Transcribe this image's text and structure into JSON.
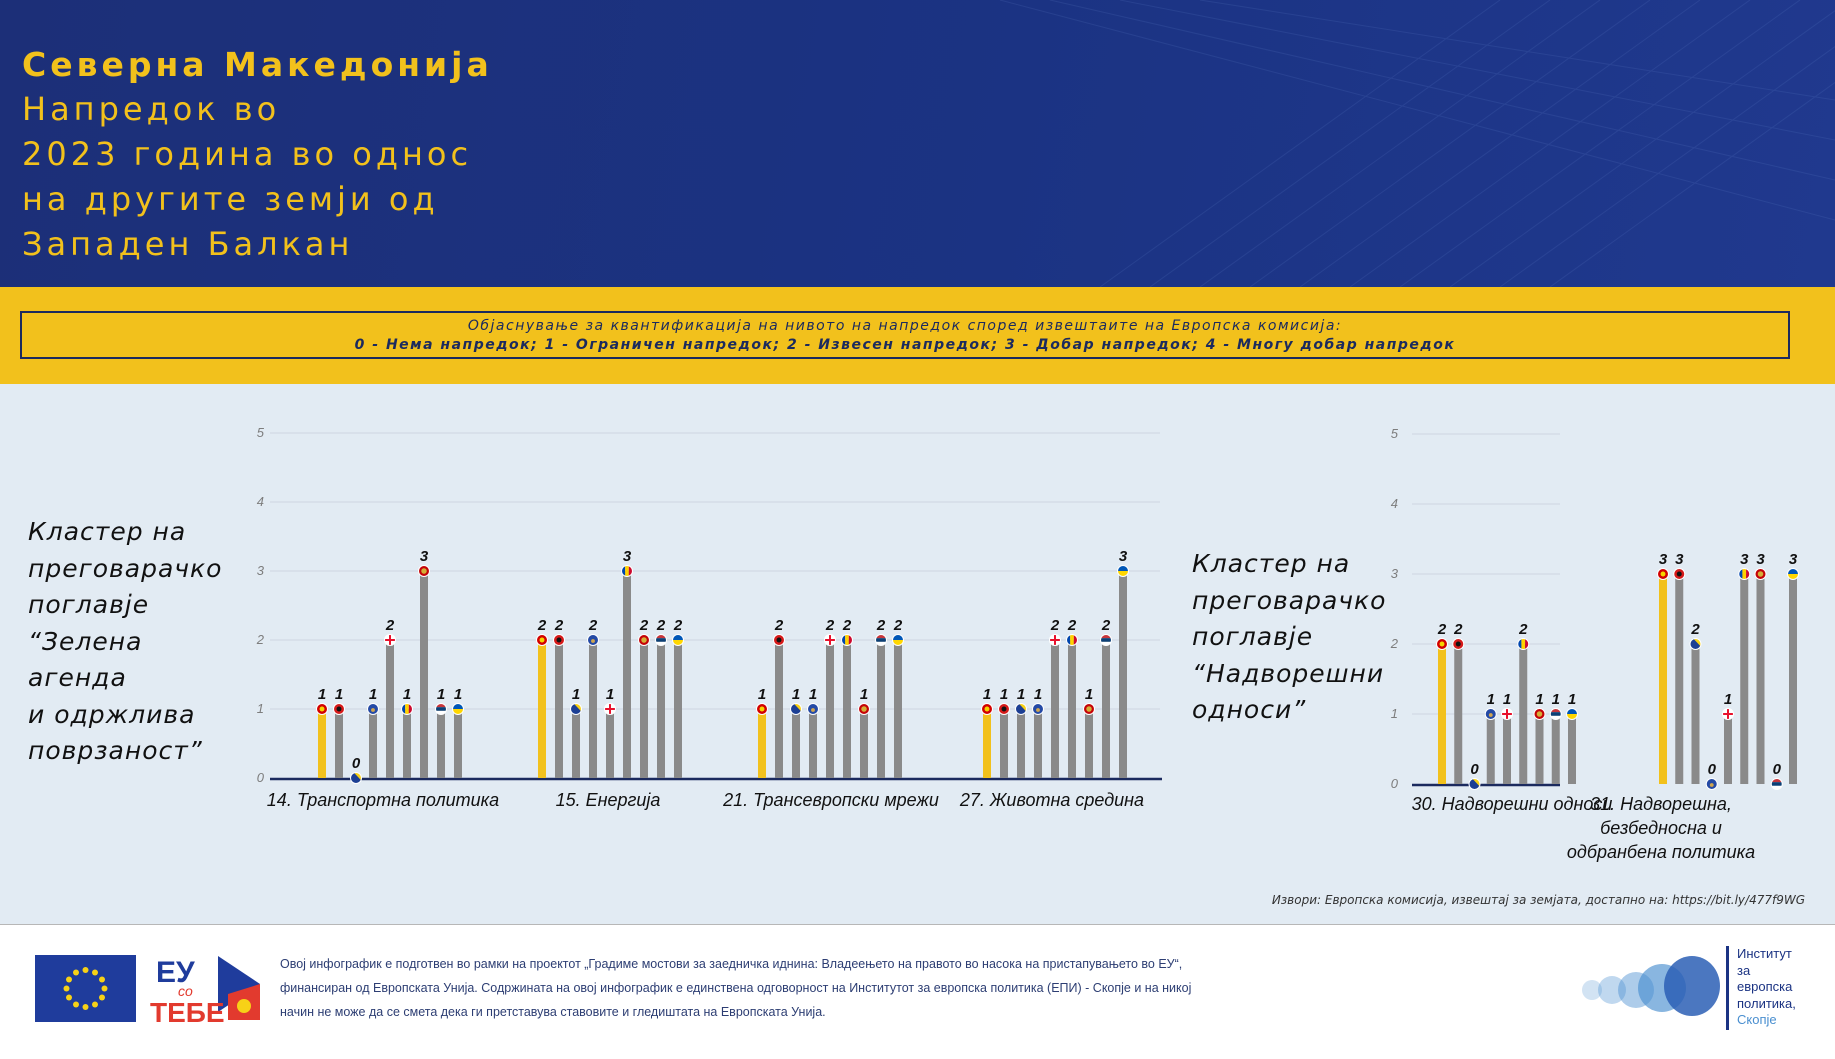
{
  "header": {
    "title_line1": "Северна Македонија",
    "title_line2": "Напредок во",
    "title_line3": "2023 година во однос",
    "title_line4": "на другите земји од",
    "title_line5": "Западен Балкан"
  },
  "legend": {
    "line1": "Објаснување за квантификација  на нивото на напредок според извештаите на Европска комисија:",
    "line2": "0 - Нема напредок; 1 - Ограничен напредок; 2 - Извесен напредок; 3 - Добар напредок; 4 - Многу добар напредок"
  },
  "clusters": {
    "green": {
      "line1": "Кластер на",
      "line2": "преговарачко",
      "line3": "поглавје",
      "line4": "“Зелена",
      "line5": "агенда",
      "line6": "и одржлива",
      "line7": "поврзаност”"
    },
    "external": {
      "line1": "Кластер на",
      "line2": "преговарачко",
      "line3": "поглавје",
      "line4": "“Надворешни",
      "line5": "односи”"
    }
  },
  "countries": [
    "North Macedonia",
    "Albania",
    "Bosnia and Herzegovina",
    "Kosovo",
    "Georgia",
    "Moldova",
    "Montenegro",
    "Serbia",
    "Ukraine"
  ],
  "colors": {
    "header_bg": "#1c2f78",
    "accent_yellow": "#f2c11c",
    "chart_bg": "#e2ebf3",
    "bar_gray": "#8a8a8a",
    "bar_highlight": "#f2c11c",
    "axis": "#1b2a5e"
  },
  "chart_data": [
    {
      "type": "bar",
      "ylim": [
        0,
        5
      ],
      "yticks": [
        0,
        1,
        2,
        3,
        4,
        5
      ],
      "categories": [
        "14. Транспортна политика",
        "15. Енергија",
        "21. Трансевропски мрежи",
        "27. Животна средина"
      ],
      "groups": [
        {
          "bars": [
            {
              "flag": "mk",
              "value": 1
            },
            {
              "flag": "al",
              "value": 1
            },
            {
              "flag": "ba",
              "value": 0
            },
            {
              "flag": "xk",
              "value": 1
            },
            {
              "flag": "ge",
              "value": 2
            },
            {
              "flag": "md",
              "value": 1
            },
            {
              "flag": "me",
              "value": 3
            },
            {
              "flag": "rs",
              "value": 1
            },
            {
              "flag": "ua",
              "value": 1
            }
          ]
        },
        {
          "bars": [
            {
              "flag": "mk",
              "value": 2
            },
            {
              "flag": "al",
              "value": 2
            },
            {
              "flag": "ba",
              "value": 1
            },
            {
              "flag": "xk",
              "value": 2
            },
            {
              "flag": "ge",
              "value": 1
            },
            {
              "flag": "md",
              "value": 3
            },
            {
              "flag": "me",
              "value": 2
            },
            {
              "flag": "rs",
              "value": 2
            },
            {
              "flag": "ua",
              "value": 2
            }
          ]
        },
        {
          "bars": [
            {
              "flag": "mk",
              "value": 1
            },
            {
              "flag": "al",
              "value": 2
            },
            {
              "flag": "ba",
              "value": 1
            },
            {
              "flag": "xk",
              "value": 1
            },
            {
              "flag": "ge",
              "value": 2
            },
            {
              "flag": "md",
              "value": 2
            },
            {
              "flag": "me",
              "value": 1
            },
            {
              "flag": "rs",
              "value": 2
            },
            {
              "flag": "ua",
              "value": 2
            }
          ]
        },
        {
          "bars": [
            {
              "flag": "mk",
              "value": 1
            },
            {
              "flag": "al",
              "value": 1
            },
            {
              "flag": "ba",
              "value": 1
            },
            {
              "flag": "xk",
              "value": 1
            },
            {
              "flag": "ge",
              "value": 2
            },
            {
              "flag": "md",
              "value": 2
            },
            {
              "flag": "me",
              "value": 1
            },
            {
              "flag": "rs",
              "value": 2
            },
            {
              "flag": "ua",
              "value": 3
            }
          ]
        }
      ]
    },
    {
      "type": "bar",
      "ylim": [
        0,
        5
      ],
      "yticks": [
        0,
        1,
        2,
        3,
        4,
        5
      ],
      "categories": [
        "30. Надворешни односи",
        "31. Надворешна, безбедносна и одбранбена политика"
      ],
      "category_lines": [
        [
          "30. Надворешни односи"
        ],
        [
          "31. Надворешна,",
          "безбедносна и",
          "одбранбена политика"
        ]
      ],
      "groups": [
        {
          "bars": [
            {
              "flag": "mk",
              "value": 2
            },
            {
              "flag": "al",
              "value": 2
            },
            {
              "flag": "ba",
              "value": 0
            },
            {
              "flag": "xk",
              "value": 1
            },
            {
              "flag": "ge",
              "value": 1
            },
            {
              "flag": "md",
              "value": 2
            },
            {
              "flag": "me",
              "value": 1
            },
            {
              "flag": "rs",
              "value": 1
            },
            {
              "flag": "ua",
              "value": 1
            }
          ]
        },
        {
          "bars": [
            {
              "flag": "mk",
              "value": 3
            },
            {
              "flag": "al",
              "value": 3
            },
            {
              "flag": "ba",
              "value": 2
            },
            {
              "flag": "xk",
              "value": 0
            },
            {
              "flag": "ge",
              "value": 1
            },
            {
              "flag": "md",
              "value": 3
            },
            {
              "flag": "me",
              "value": 3
            },
            {
              "flag": "rs",
              "value": 0
            },
            {
              "flag": "ua",
              "value": 3
            }
          ]
        }
      ]
    }
  ],
  "source": "Извори: Европска комисија, извештај за земјата, достапно на: https://bit.ly/477f9WG",
  "footer": {
    "logo_eu_so_tebe": "ЕУ со ТЕБЕ",
    "line1": "Овој инфографик е подготвен во рамки на проектот „Градиме мостови за заедничка иднина: Владеењето на правото во насока на пристапувањето во ЕУ“,",
    "line2": "финансиран од Европската Унија. Содржината на овој инфографик е единствена одговорност на Институтот за европска политика (ЕПИ) - Скопје и на никој",
    "line3": "начин не може да се смета дека ги претставува ставовите и гледиштата на Европската Унија.",
    "epi_line1": "Институт",
    "epi_line2": "за",
    "epi_line3": "европска",
    "epi_line4": "политика,",
    "epi_line5": "Скопје"
  }
}
